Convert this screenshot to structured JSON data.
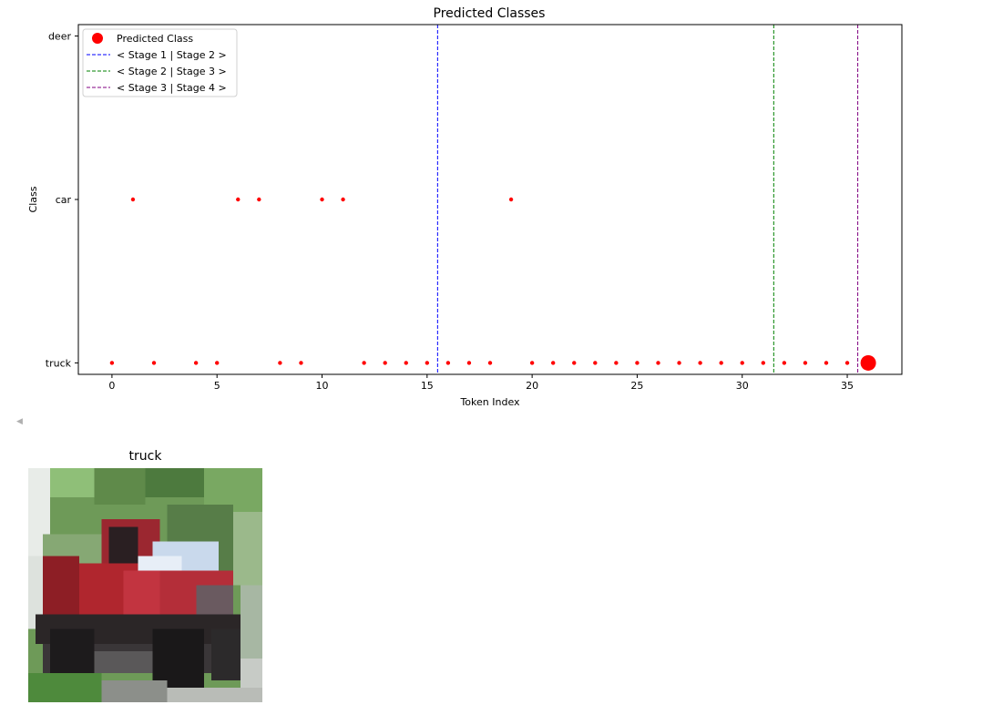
{
  "chart_data": {
    "type": "scatter",
    "title": "Predicted Classes",
    "xlabel": "Token Index",
    "ylabel": "Class",
    "categories_y": [
      "truck",
      "car",
      "deer"
    ],
    "xlim": [
      -1.6,
      37.6
    ],
    "ylim": [
      -0.07,
      2.07
    ],
    "xticks": [
      0,
      5,
      10,
      15,
      20,
      25,
      30,
      35
    ],
    "grid": false,
    "legend_position": "top-left",
    "points": [
      {
        "x": 0,
        "y": "truck"
      },
      {
        "x": 1,
        "y": "car"
      },
      {
        "x": 2,
        "y": "truck"
      },
      {
        "x": 4,
        "y": "truck"
      },
      {
        "x": 5,
        "y": "truck"
      },
      {
        "x": 6,
        "y": "car"
      },
      {
        "x": 7,
        "y": "car"
      },
      {
        "x": 8,
        "y": "truck"
      },
      {
        "x": 9,
        "y": "truck"
      },
      {
        "x": 10,
        "y": "car"
      },
      {
        "x": 11,
        "y": "car"
      },
      {
        "x": 12,
        "y": "truck"
      },
      {
        "x": 13,
        "y": "truck"
      },
      {
        "x": 14,
        "y": "truck"
      },
      {
        "x": 15,
        "y": "truck"
      },
      {
        "x": 16,
        "y": "truck"
      },
      {
        "x": 17,
        "y": "truck"
      },
      {
        "x": 18,
        "y": "truck"
      },
      {
        "x": 19,
        "y": "car"
      },
      {
        "x": 20,
        "y": "truck"
      },
      {
        "x": 21,
        "y": "truck"
      },
      {
        "x": 22,
        "y": "truck"
      },
      {
        "x": 23,
        "y": "truck"
      },
      {
        "x": 24,
        "y": "truck"
      },
      {
        "x": 25,
        "y": "truck"
      },
      {
        "x": 26,
        "y": "truck"
      },
      {
        "x": 27,
        "y": "truck"
      },
      {
        "x": 28,
        "y": "truck"
      },
      {
        "x": 29,
        "y": "truck"
      },
      {
        "x": 30,
        "y": "truck"
      },
      {
        "x": 31,
        "y": "truck"
      },
      {
        "x": 32,
        "y": "truck"
      },
      {
        "x": 33,
        "y": "truck"
      },
      {
        "x": 34,
        "y": "truck"
      },
      {
        "x": 35,
        "y": "truck"
      }
    ],
    "final_point": {
      "x": 36,
      "y": "truck"
    },
    "vlines": [
      {
        "x": 15.5,
        "label": "< Stage 1 | Stage 2 >",
        "color": "#0000ff"
      },
      {
        "x": 31.5,
        "label": "< Stage 2 | Stage 3 >",
        "color": "#008000"
      },
      {
        "x": 35.5,
        "label": "< Stage 3 | Stage 4 >",
        "color": "#800080"
      }
    ],
    "legend": [
      {
        "label": "Predicted Class",
        "kind": "marker",
        "color": "#ff0000"
      },
      {
        "label": "< Stage 1 | Stage 2 >",
        "kind": "dashed",
        "color": "#0000ff"
      },
      {
        "label": "< Stage 2 | Stage 3 >",
        "kind": "dashed",
        "color": "#008000"
      },
      {
        "label": "< Stage 3 | Stage 4 >",
        "kind": "dashed",
        "color": "#800080"
      }
    ],
    "point_color": "#ff0000"
  },
  "image_panel": {
    "title": "truck",
    "icon": "truck-photo"
  }
}
